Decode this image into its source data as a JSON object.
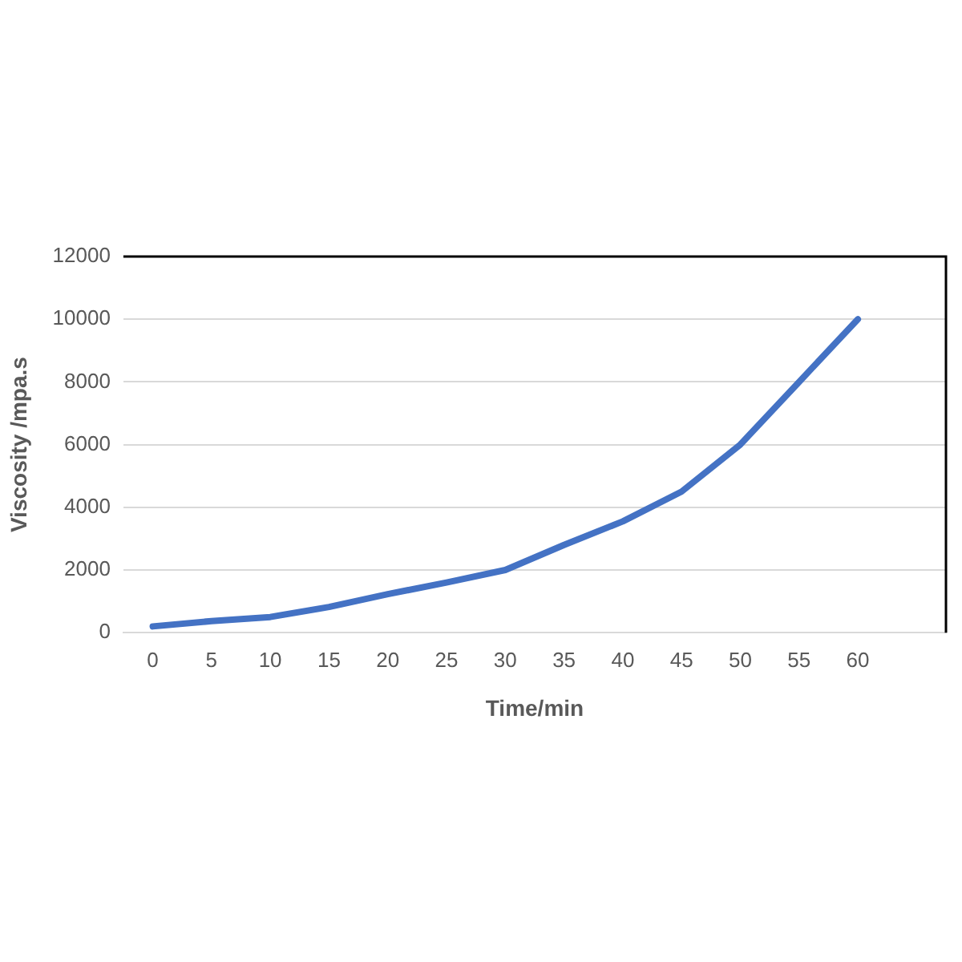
{
  "chart_data": {
    "type": "line",
    "xlabel": "Time/min",
    "ylabel": "Viscosity /mpa.s",
    "categories": [
      "0",
      "5",
      "10",
      "15",
      "20",
      "25",
      "30",
      "35",
      "40",
      "45",
      "50",
      "55",
      "60",
      null
    ],
    "series": [
      {
        "color": "#4472c4",
        "values": [
          200,
          370,
          500,
          820,
          1230,
          1600,
          2000,
          2800,
          3550,
          4500,
          6000,
          8000,
          10000,
          null
        ]
      }
    ],
    "ylim": [
      0,
      12000
    ],
    "yticks": [
      0,
      2000,
      4000,
      6000,
      8000,
      10000,
      12000
    ],
    "grid": "y",
    "legend": false,
    "marker": "none",
    "line_style": "solid"
  }
}
